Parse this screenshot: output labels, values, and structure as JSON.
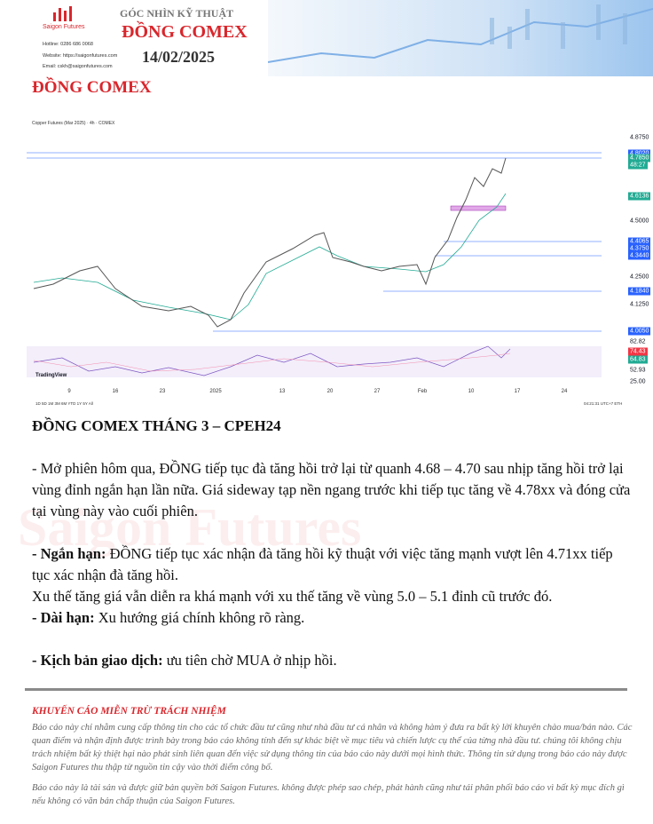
{
  "header": {
    "logo": "Saigon Futures",
    "hotline": "Hotline: 0286 686 0068",
    "website": "Website: https://saigonfutures.com",
    "email": "Email: cskh@saigonfutures.com",
    "kicker": "GÓC NHÌN KỸ THUẬT",
    "title": "ĐỒNG COMEX",
    "date": "14/02/2025"
  },
  "section_title": "ĐỒNG COMEX",
  "figure": {
    "title": "Copper Futures (Mar 2025) · 4h · COMEX",
    "price_labels": [
      {
        "label": "4.8750"
      },
      {
        "label": "4.8020",
        "color": "#2962ff"
      },
      {
        "label": "4.7850",
        "color": "#22ab94"
      },
      {
        "label": "4.6136",
        "color": "#22ab94"
      },
      {
        "label": "4.5000"
      },
      {
        "label": "4.4065",
        "color": "#2962ff"
      },
      {
        "label": "4.3750",
        "color": "#2962ff"
      },
      {
        "label": "4.3440",
        "color": "#2962ff"
      },
      {
        "label": "4.2500"
      },
      {
        "label": "4.1840",
        "color": "#2962ff"
      },
      {
        "label": "4.1250"
      },
      {
        "label": "4.0050",
        "color": "#2962ff"
      }
    ],
    "countdown": "48:27",
    "x_labels": [
      "9",
      "16",
      "23",
      "2025",
      "13",
      "20",
      "27",
      "Feb",
      "10",
      "17",
      "24"
    ],
    "rsi_labels": [
      {
        "label": "82.82"
      },
      {
        "label": "74.43",
        "color": "#f23645"
      },
      {
        "label": "64.83",
        "color": "#22ab94"
      },
      {
        "label": "52.93"
      },
      {
        "label": "25.00"
      }
    ],
    "brand": "TradingView",
    "ranges": "1D  5D  1M  3M  6M  YTD  1Y  5Y  All",
    "clock": "04:21:31 UTC+7  ETH"
  },
  "watermark": "Saigon Futures",
  "subtitle": "ĐỒNG COMEX THÁNG 3 – CPEH24",
  "paragraphs": [
    {
      "text": "- Mở phiên hôm qua, ĐỒNG tiếp tục đà tăng hồi trở lại từ quanh 4.68 – 4.70 sau nhịp tăng hồi trở lại vùng đỉnh ngắn hạn lần nữa. Giá sideway tạp nền ngang trước khi tiếp tục tăng về 4.78xx và đóng cửa tại vùng này vào cuối phiên."
    },
    {
      "lead": "- Ngắn hạn:",
      "text": " ĐỒNG tiếp tục xác nhận đà tăng hồi kỹ thuật với việc tăng mạnh vượt lên 4.71xx tiếp tục xác nhận đà tăng hồi."
    },
    {
      "text": "Xu thế tăng giá vẫn diễn ra khá mạnh với xu thế tăng về vùng 5.0 – 5.1 đỉnh cũ trước đó."
    },
    {
      "lead": "- Dài hạn:",
      "text": " Xu hướng giá chính không rõ ràng."
    },
    {
      "lead": "- Kịch bản giao dịch:",
      "text": " ưu tiên chờ MUA ở nhịp hồi."
    }
  ],
  "disclaimer": {
    "title": "KHUYẾN CÁO MIỄN TRỪ TRÁCH NHIỆM",
    "paragraphs": [
      "Báo cáo này chỉ nhằm cung cấp thông tin cho các tổ chức đầu tư cũng như nhà đầu tư cá nhân và không hàm ý đưa ra bất kỳ lời khuyên chào mua/bán nào. Các quan điểm và nhận định được trình bày trong báo cáo không tính đến sự khác biệt về mục tiêu và chiến lược cụ thể của từng nhà đầu tư. chúng tôi không chịu trách nhiệm bất kỳ thiệt hại nào phát sinh liên quan đến việc sử dụng thông tin của báo cáo này dưới mọi hình thức. Thông tin sử dụng trong báo cáo này được Saigon Futures thu thập từ nguồn tin cậy vào thời điểm công bố.",
      "Báo cáo này là tài sản và được giữ bản quyền bởi Saigon Futures. không được phép sao chép, phát hành cũng như tái phân phối báo cáo vì bất kỳ mục đích gì nếu không có văn bản chấp thuận của Saigon Futures."
    ]
  }
}
